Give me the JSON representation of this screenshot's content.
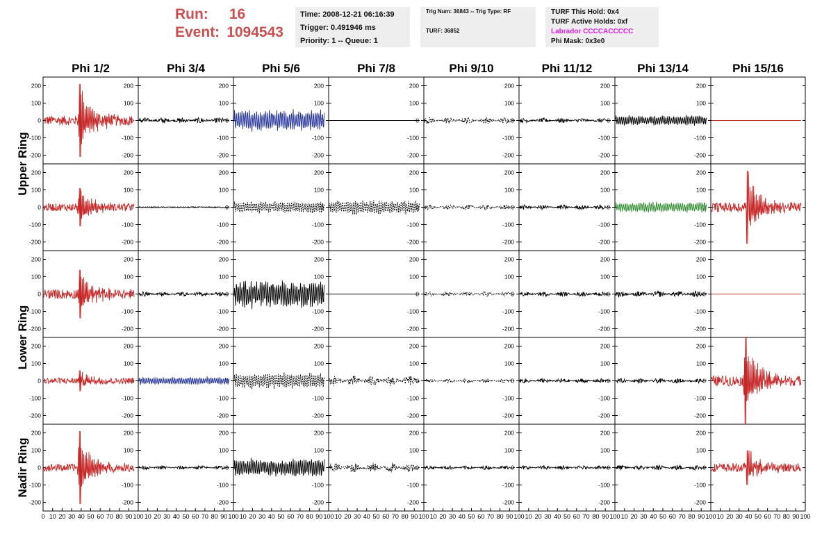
{
  "header": {
    "run_label": "Run:",
    "run_value": "16",
    "event_label": "Event:",
    "event_value": "1094543"
  },
  "time_box": {
    "time": "Time: 2008-12-21 06:16:39",
    "trigger": "Trigger: 0.491946 ms",
    "priority": "Priority: 1 -- Queue: 1"
  },
  "trig_box": {
    "trig": "Trig Num: 36843 -- Trig Type: RF",
    "turf": "TURF: 36852"
  },
  "turf_box": {
    "hold": "TURF This Hold: 0x4",
    "active": "TURF Active Holds: 0xf",
    "labrador": "Labrador CCCCACCCCC",
    "phimask": "Phi Mask: 0x3e0"
  },
  "chart_data": {
    "type": "line",
    "column_titles": [
      "Phi 1/2",
      "Phi 3/4",
      "Phi 5/6",
      "Phi 7/8",
      "Phi 9/10",
      "Phi 11/12",
      "Phi 13/14",
      "Phi 15/16"
    ],
    "row_titles": [
      "Upper Ring",
      "Lower Ring",
      "Nadir Ring"
    ],
    "ylim": [
      -250,
      250
    ],
    "xlim": [
      0,
      100
    ],
    "yticks": [
      "200",
      "100",
      "0",
      "-100",
      "-200"
    ],
    "xticks": [
      "0",
      "10",
      "20",
      "30",
      "40",
      "50",
      "60",
      "70",
      "80",
      "90",
      "100"
    ],
    "colors": {
      "red": "#c62828",
      "blue": "#1f2f9a",
      "green": "#2e8b2e",
      "black": "#000000"
    },
    "panels": [
      [
        {
          "color": "red",
          "style": "burst",
          "amp": 28,
          "peak": 210,
          "center": 40,
          "dashed": false
        },
        {
          "color": "black",
          "style": "noise",
          "amp": 18,
          "dashed": false
        },
        {
          "color": "blue",
          "style": "dense",
          "amp": 60,
          "dashed": false
        },
        {
          "color": "black",
          "style": "flat",
          "dashed": false
        },
        {
          "color": "black",
          "style": "noise",
          "amp": 20,
          "dashed": true
        },
        {
          "color": "black",
          "style": "noise",
          "amp": 14,
          "dashed": false
        },
        {
          "color": "black",
          "style": "dense",
          "amp": 28,
          "dashed": false
        },
        {
          "color": "red",
          "style": "flat",
          "dashed": false
        }
      ],
      [
        {
          "color": "red",
          "style": "burst",
          "amp": 22,
          "peak": 110,
          "center": 40,
          "dashed": false
        },
        {
          "color": "black",
          "style": "tiny",
          "amp": 3,
          "dashed": false
        },
        {
          "color": "black",
          "style": "dense",
          "amp": 32,
          "dashed": true
        },
        {
          "color": "black",
          "style": "dense",
          "amp": 38,
          "dashed": true
        },
        {
          "color": "black",
          "style": "noise",
          "amp": 15,
          "dashed": true
        },
        {
          "color": "black",
          "style": "noise",
          "amp": 14,
          "dashed": false
        },
        {
          "color": "green",
          "style": "dense",
          "amp": 30,
          "dashed": false
        },
        {
          "color": "red",
          "style": "burst",
          "amp": 28,
          "peak": 210,
          "center": 40,
          "dashed": false
        }
      ],
      [
        {
          "color": "red",
          "style": "burst",
          "amp": 28,
          "peak": 140,
          "center": 40,
          "dashed": false
        },
        {
          "color": "black",
          "style": "noise",
          "amp": 14,
          "dashed": false
        },
        {
          "color": "black",
          "style": "dense",
          "amp": 75,
          "dashed": false
        },
        {
          "color": "black",
          "style": "flat",
          "dashed": false
        },
        {
          "color": "black",
          "style": "noise",
          "amp": 14,
          "dashed": true
        },
        {
          "color": "black",
          "style": "noise",
          "amp": 14,
          "dashed": false
        },
        {
          "color": "black",
          "style": "noise",
          "amp": 18,
          "dashed": false
        },
        {
          "color": "red",
          "style": "flat",
          "dashed": false
        }
      ],
      [
        {
          "color": "red",
          "style": "burst",
          "amp": 18,
          "peak": 60,
          "center": 40,
          "dashed": false
        },
        {
          "color": "blue",
          "style": "dense",
          "amp": 22,
          "dashed": false
        },
        {
          "color": "black",
          "style": "dense",
          "amp": 45,
          "dashed": true
        },
        {
          "color": "black",
          "style": "noise",
          "amp": 30,
          "dashed": true
        },
        {
          "color": "black",
          "style": "noise",
          "amp": 12,
          "dashed": true
        },
        {
          "color": "black",
          "style": "noise",
          "amp": 14,
          "dashed": false
        },
        {
          "color": "black",
          "style": "noise",
          "amp": 14,
          "dashed": false
        },
        {
          "color": "red",
          "style": "burst",
          "amp": 30,
          "peak": 250,
          "center": 38,
          "dashed": false
        }
      ],
      [
        {
          "color": "red",
          "style": "burst",
          "amp": 22,
          "peak": 210,
          "center": 40,
          "dashed": false
        },
        {
          "color": "black",
          "style": "noise",
          "amp": 12,
          "dashed": false
        },
        {
          "color": "black",
          "style": "dense",
          "amp": 50,
          "dashed": false
        },
        {
          "color": "black",
          "style": "noise",
          "amp": 30,
          "dashed": true
        },
        {
          "color": "black",
          "style": "noise",
          "amp": 12,
          "dashed": false
        },
        {
          "color": "black",
          "style": "noise",
          "amp": 12,
          "dashed": false
        },
        {
          "color": "black",
          "style": "noise",
          "amp": 16,
          "dashed": false
        },
        {
          "color": "red",
          "style": "burst",
          "amp": 25,
          "peak": 100,
          "center": 40,
          "dashed": false
        }
      ]
    ]
  }
}
